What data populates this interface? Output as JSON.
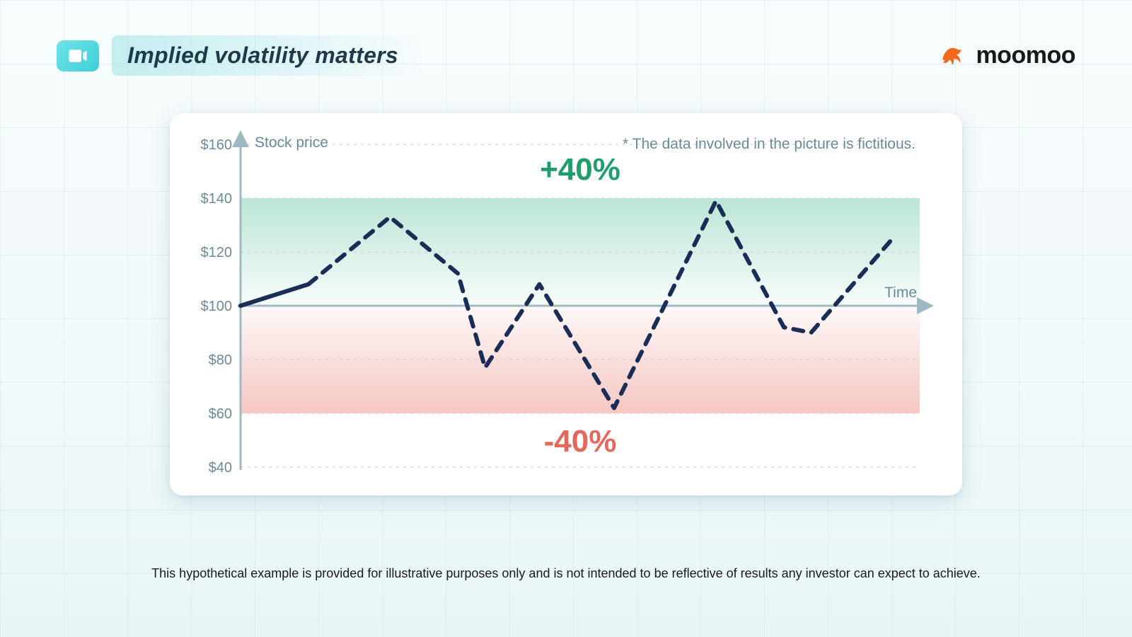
{
  "header": {
    "title": "Implied volatility matters",
    "brand_name": "moomoo",
    "brand_color": "#f26a1b",
    "title_icon_bg": "#4fd6dc"
  },
  "footnote": "This hypothetical example is provided for illustrative purposes only and is not intended to be reflective of results any investor can expect to achieve.",
  "chart": {
    "type": "line",
    "y_label": "Stock price",
    "x_label": "Time",
    "note": "* The data involved in the picture is fictitious.",
    "ylim": [
      40,
      160
    ],
    "ytick_step": 20,
    "yticks": [
      40,
      60,
      80,
      100,
      120,
      140,
      160
    ],
    "ytick_labels": [
      "$40",
      "$60",
      "$80",
      "$100",
      "$120",
      "$140",
      "$160"
    ],
    "baseline": 100,
    "upper_band": 140,
    "lower_band": 60,
    "upper_pct_label": "+40%",
    "lower_pct_label": "-40%",
    "upper_pct_color": "#1f9d6a",
    "lower_pct_color": "#e26a5c",
    "band_gain_fill_top": "rgba(104, 198, 163, 0.45)",
    "band_gain_fill_bottom": "rgba(104, 198, 163, 0.06)",
    "band_loss_fill_top": "rgba(232, 130, 118, 0.06)",
    "band_loss_fill_bottom": "rgba(232, 130, 118, 0.45)",
    "line_color": "#1a2d56",
    "line_width": 6,
    "dash_pattern": "14 12",
    "axis_color": "#9fb9c3",
    "grid_color": "#c9d7dd",
    "grid_dash": "4 6",
    "background_color": "#ffffff",
    "tick_fontsize": 20,
    "label_fontsize": 21,
    "pct_fontsize": 44,
    "x_range": [
      0,
      100
    ],
    "points": [
      {
        "x": 0,
        "y": 100
      },
      {
        "x": 10,
        "y": 108
      },
      {
        "x": 22,
        "y": 133
      },
      {
        "x": 32,
        "y": 112
      },
      {
        "x": 36,
        "y": 77
      },
      {
        "x": 44,
        "y": 108
      },
      {
        "x": 55,
        "y": 62
      },
      {
        "x": 70,
        "y": 139
      },
      {
        "x": 80,
        "y": 92
      },
      {
        "x": 84,
        "y": 90
      },
      {
        "x": 96,
        "y": 125
      }
    ],
    "solid_segment_end_index": 1
  }
}
